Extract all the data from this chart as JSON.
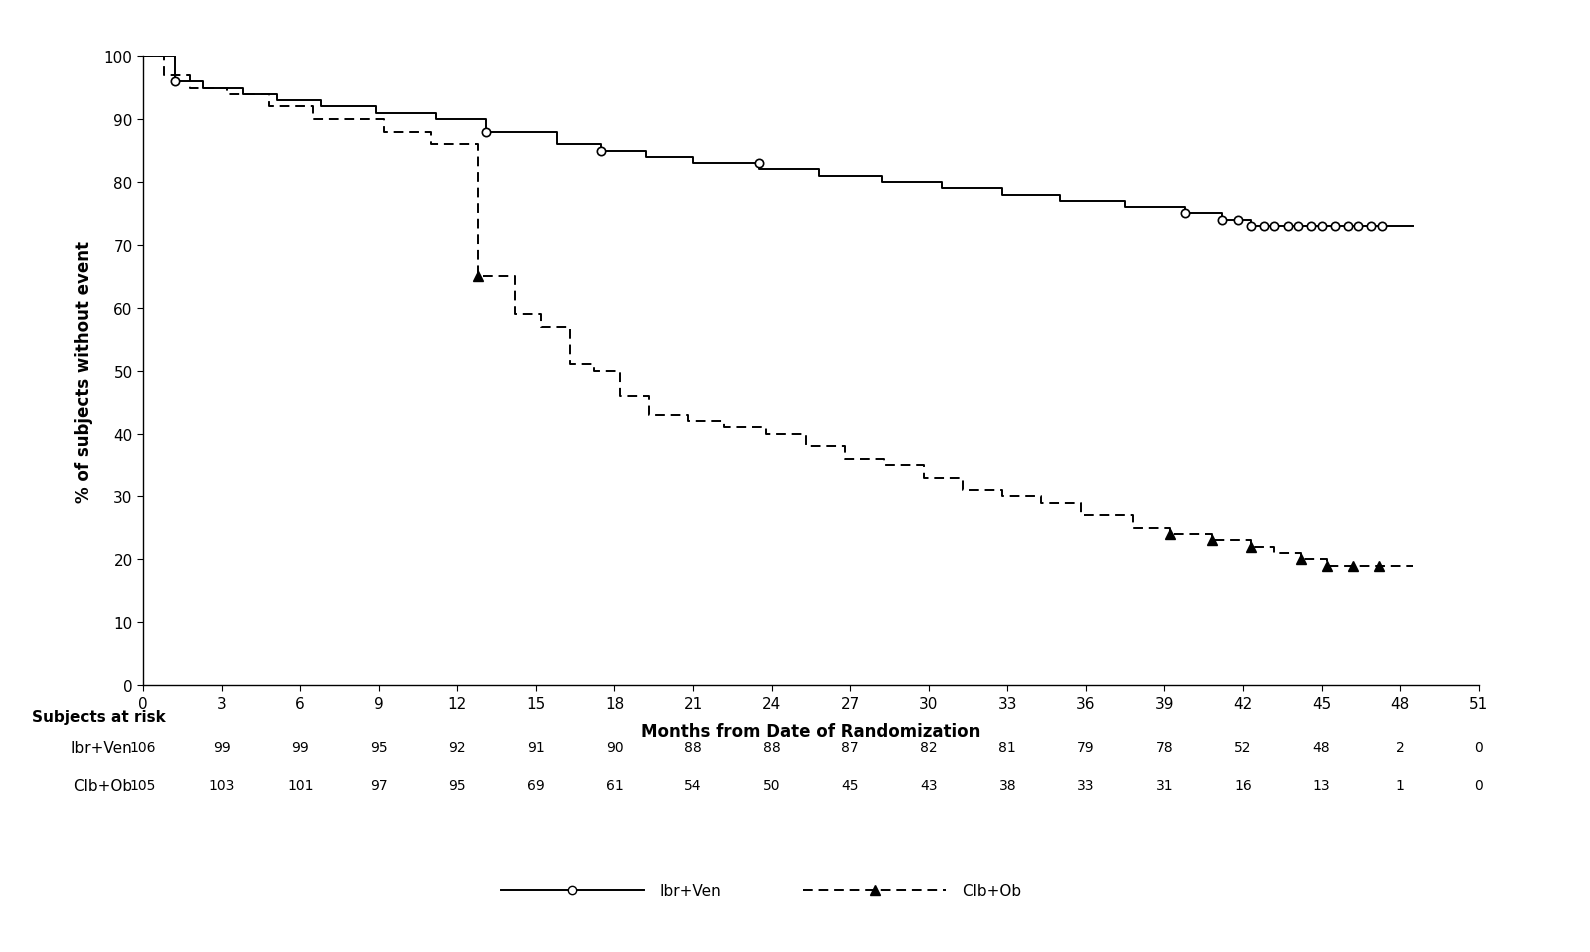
{
  "xlabel": "Months from Date of Randomization",
  "ylabel": "% of subjects without event",
  "xlim": [
    0,
    51
  ],
  "ylim": [
    0,
    100
  ],
  "xticks": [
    0,
    3,
    6,
    9,
    12,
    15,
    18,
    21,
    24,
    27,
    30,
    33,
    36,
    39,
    42,
    45,
    48,
    51
  ],
  "yticks": [
    0,
    10,
    20,
    30,
    40,
    50,
    60,
    70,
    80,
    90,
    100
  ],
  "ibr_ven_steps": {
    "x": [
      0,
      1.2,
      2.3,
      3.8,
      5.1,
      6.8,
      8.9,
      11.2,
      13.1,
      15.8,
      17.5,
      19.2,
      21.0,
      23.5,
      25.8,
      28.2,
      30.5,
      32.8,
      35.0,
      37.5,
      39.8,
      41.2,
      41.8,
      42.3,
      42.8,
      43.2,
      43.7,
      44.1,
      44.6,
      45.0,
      45.5,
      46.0,
      46.4,
      46.9,
      47.3,
      48.5
    ],
    "y": [
      100,
      96,
      95,
      94,
      93,
      92,
      91,
      90,
      88,
      86,
      85,
      84,
      83,
      82,
      81,
      80,
      79,
      78,
      77,
      76,
      75,
      74,
      74,
      73,
      73,
      73,
      73,
      73,
      73,
      73,
      73,
      73,
      73,
      73,
      73,
      73
    ]
  },
  "clb_ob_steps": {
    "x": [
      0,
      0.8,
      1.8,
      3.2,
      4.8,
      6.5,
      9.2,
      11.0,
      12.8,
      14.2,
      15.2,
      16.3,
      17.2,
      18.2,
      19.3,
      20.8,
      22.2,
      23.8,
      25.3,
      26.8,
      28.3,
      29.8,
      31.3,
      32.8,
      34.3,
      35.8,
      37.8,
      39.2,
      40.8,
      42.3,
      43.2,
      44.2,
      45.2,
      46.2,
      47.2,
      48.5
    ],
    "y": [
      100,
      97,
      95,
      94,
      92,
      90,
      88,
      86,
      65,
      59,
      57,
      51,
      50,
      46,
      43,
      42,
      41,
      40,
      38,
      36,
      35,
      33,
      31,
      30,
      29,
      27,
      25,
      24,
      23,
      22,
      21,
      20,
      19,
      19,
      19,
      19
    ]
  },
  "ibr_ven_censors_x": [
    1.2,
    13.1,
    17.5,
    23.5,
    39.8,
    41.2,
    41.8,
    42.3,
    42.8,
    43.2,
    43.7,
    44.1,
    44.6,
    45.0,
    45.5,
    46.0,
    46.4,
    46.9,
    47.3
  ],
  "ibr_ven_censors_y": [
    96,
    88,
    85,
    83,
    75,
    74,
    74,
    73,
    73,
    73,
    73,
    73,
    73,
    73,
    73,
    73,
    73,
    73,
    73
  ],
  "clb_ob_censors_x": [
    12.8,
    39.2,
    40.8,
    42.3,
    44.2,
    45.2,
    46.2,
    47.2
  ],
  "clb_ob_censors_y": [
    65,
    24,
    23,
    22,
    20,
    19,
    19,
    19
  ],
  "at_risk_times": [
    0,
    3,
    6,
    9,
    12,
    15,
    18,
    21,
    24,
    27,
    30,
    33,
    36,
    39,
    42,
    45,
    48,
    51
  ],
  "ibr_ven_at_risk": [
    106,
    99,
    99,
    95,
    92,
    91,
    90,
    88,
    88,
    87,
    82,
    81,
    79,
    78,
    52,
    48,
    2,
    0
  ],
  "clb_ob_at_risk": [
    105,
    103,
    101,
    97,
    95,
    69,
    61,
    54,
    50,
    45,
    43,
    38,
    33,
    31,
    16,
    13,
    1,
    0
  ],
  "bg_color": "#ffffff",
  "line_color": "#000000",
  "font_size": 11,
  "marker_size": 6
}
